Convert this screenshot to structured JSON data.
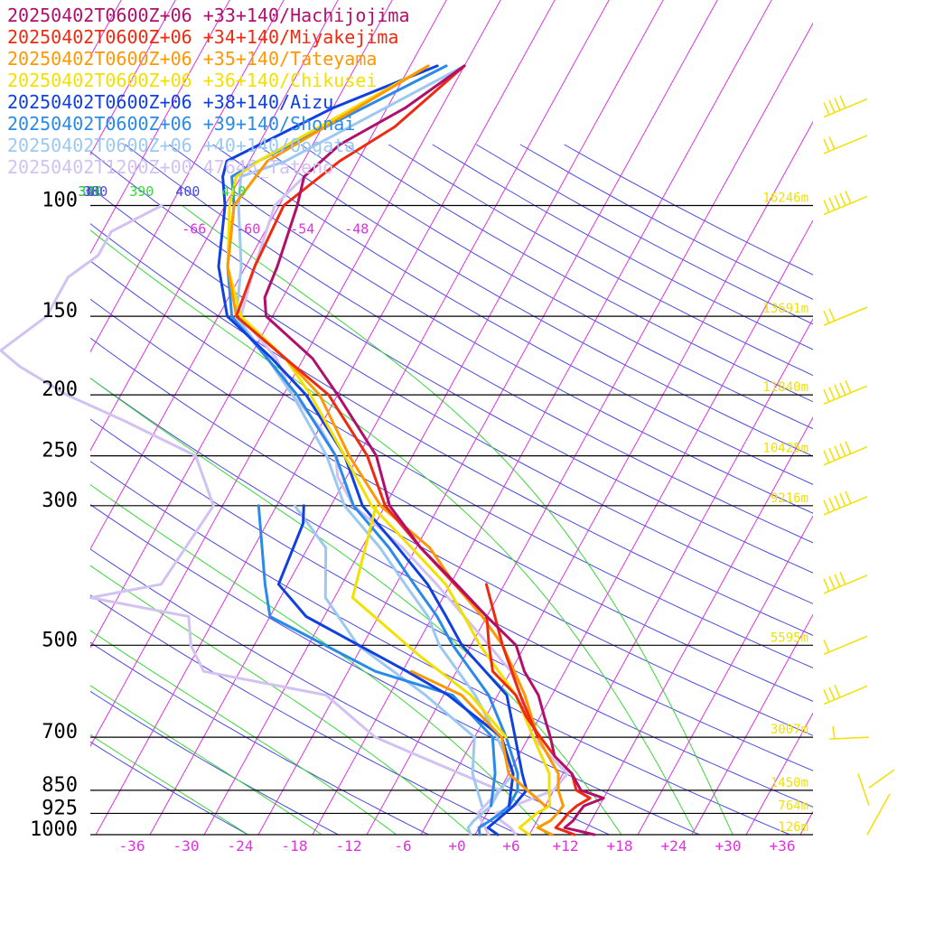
{
  "chart_data": {
    "type": "line",
    "legend": [
      {
        "text": "20250402T0600Z+06 +33+140/Hachijojima",
        "color": "#b0106a"
      },
      {
        "text": "20250402T0600Z+06 +34+140/Miyakejima",
        "color": "#ee2a10"
      },
      {
        "text": "20250402T0600Z+06 +35+140/Tateyama",
        "color": "#ff9800"
      },
      {
        "text": "20250402T0600Z+06 +36+140/Chikusei",
        "color": "#f2e100"
      },
      {
        "text": "20250402T0600Z+06 +38+140/Aizu",
        "color": "#1040e0"
      },
      {
        "text": "20250402T0600Z+06 +39+140/Shonai",
        "color": "#2a8ae8"
      },
      {
        "text": "20250402T0600Z+06 +40+140/Oogata",
        "color": "#9cc8f2"
      },
      {
        "text": "20250402T1200Z+00 47646_Tateno",
        "color": "#d2c2f2"
      }
    ],
    "pressure_levels": [
      {
        "label": "100",
        "p": 100,
        "height": "16246m"
      },
      {
        "label": "150",
        "p": 150,
        "height": "13691m"
      },
      {
        "label": "200",
        "p": 200,
        "height": "11840m"
      },
      {
        "label": "250",
        "p": 250,
        "height": "10425m"
      },
      {
        "label": "300",
        "p": 300,
        "height": "9216m"
      },
      {
        "label": "500",
        "p": 500,
        "height": "5595m"
      },
      {
        "label": "700",
        "p": 700,
        "height": "3007m"
      },
      {
        "label": "850",
        "p": 850,
        "height": "1450m"
      },
      {
        "label": "925",
        "p": 925,
        "height": "764m"
      },
      {
        "label": "1000",
        "p": 1000,
        "height": "126m"
      }
    ],
    "temperature_ticks": [
      "-36",
      "-30",
      "-24",
      "-18",
      "-12",
      "-6",
      "+0",
      "+6",
      "+12",
      "+18",
      "+24",
      "+30",
      "+36"
    ],
    "upper_temperature_labels": [
      "-66",
      "-60",
      "-54",
      "-48"
    ],
    "theta_labels": [
      "0",
      "320",
      "330",
      "340",
      "350",
      "360",
      "370",
      "380",
      "390",
      "400",
      "410"
    ],
    "xlim": [
      -40,
      40
    ],
    "ylim": [
      1000,
      100
    ],
    "y_scale": "log",
    "series": [
      {
        "name": "Hachijojima",
        "color": "#b0106a",
        "temp": [
          [
            1000,
            15.2
          ],
          [
            975,
            11.5
          ],
          [
            950,
            12.0
          ],
          [
            925,
            12.1
          ],
          [
            900,
            12.3
          ],
          [
            875,
            14.0
          ],
          [
            850,
            11.0
          ],
          [
            800,
            9.0
          ],
          [
            750,
            6.0
          ],
          [
            700,
            4.4
          ],
          [
            650,
            2.5
          ],
          [
            600,
            0.5
          ],
          [
            550,
            -2.5
          ],
          [
            500,
            -5.0
          ],
          [
            450,
            -10.0
          ],
          [
            400,
            -15.3
          ],
          [
            350,
            -21.5
          ],
          [
            300,
            -27.5
          ],
          [
            250,
            -32.0
          ],
          [
            200,
            -40.0
          ],
          [
            175,
            -45.0
          ],
          [
            150,
            -52.7
          ],
          [
            140,
            -54.0
          ],
          [
            125,
            -54.5
          ],
          [
            100,
            -56.0
          ],
          [
            90,
            -57.0
          ],
          [
            80,
            -55.0
          ],
          [
            70,
            -50.0
          ],
          [
            60,
            -46.0
          ]
        ],
        "dew": null
      },
      {
        "name": "Miyakejima",
        "color": "#ee2a10",
        "temp": [
          [
            1000,
            13.0
          ],
          [
            975,
            10.5
          ],
          [
            950,
            10.8
          ],
          [
            925,
            11.0
          ],
          [
            900,
            11.5
          ],
          [
            875,
            12.5
          ],
          [
            850,
            10.5
          ],
          [
            800,
            9.0
          ],
          [
            750,
            6.0
          ],
          [
            700,
            3.3
          ],
          [
            650,
            0.5
          ],
          [
            600,
            -2.0
          ],
          [
            550,
            -6.0
          ],
          [
            500,
            -8.0
          ],
          [
            450,
            -10.0
          ],
          [
            400,
            -15.5
          ],
          [
            350,
            -21.5
          ],
          [
            300,
            -28.0
          ],
          [
            250,
            -33.0
          ],
          [
            200,
            -41.0
          ],
          [
            175,
            -48.0
          ],
          [
            150,
            -56.0
          ],
          [
            125,
            -57.0
          ],
          [
            100,
            -57.5
          ],
          [
            85,
            -54.0
          ],
          [
            75,
            -50.0
          ],
          [
            60,
            -46.0
          ]
        ],
        "dew": [
          [
            700,
            3.0
          ],
          [
            600,
            -1.5
          ],
          [
            500,
            -6.5
          ],
          [
            400,
            -12.0
          ]
        ]
      },
      {
        "name": "Tateyama",
        "color": "#ff9800",
        "temp": [
          [
            1000,
            10.5
          ],
          [
            975,
            8.5
          ],
          [
            950,
            9.5
          ],
          [
            925,
            9.8
          ],
          [
            900,
            10.0
          ],
          [
            850,
            8.5
          ],
          [
            800,
            7.5
          ],
          [
            700,
            3.0
          ],
          [
            600,
            -1.0
          ],
          [
            500,
            -6.5
          ],
          [
            450,
            -10.5
          ],
          [
            400,
            -15.5
          ],
          [
            350,
            -20.5
          ],
          [
            300,
            -28.5
          ],
          [
            250,
            -35.0
          ],
          [
            200,
            -42.0
          ],
          [
            175,
            -48.0
          ],
          [
            150,
            -56.0
          ],
          [
            125,
            -60.0
          ],
          [
            100,
            -63.0
          ],
          [
            85,
            -62.0
          ],
          [
            60,
            -50.0
          ]
        ],
        "dew": [
          [
            900,
            8.0
          ],
          [
            800,
            2.0
          ],
          [
            700,
            -1.0
          ],
          [
            600,
            -8.0
          ],
          [
            550,
            -15.0
          ]
        ]
      },
      {
        "name": "Chikusei",
        "color": "#f2e100",
        "temp": [
          [
            1000,
            8.0
          ],
          [
            975,
            6.5
          ],
          [
            950,
            7.0
          ],
          [
            925,
            7.5
          ],
          [
            900,
            8.5
          ],
          [
            850,
            7.5
          ],
          [
            800,
            6.5
          ],
          [
            700,
            2.5
          ],
          [
            600,
            -2.0
          ],
          [
            500,
            -9.0
          ],
          [
            450,
            -12.5
          ],
          [
            400,
            -16.5
          ],
          [
            350,
            -22.5
          ],
          [
            300,
            -29.5
          ],
          [
            250,
            -35.5
          ],
          [
            200,
            -43.0
          ],
          [
            175,
            -48.0
          ],
          [
            150,
            -55.5
          ],
          [
            125,
            -60.0
          ],
          [
            100,
            -63.5
          ],
          [
            90,
            -64.5
          ],
          [
            85,
            -63.0
          ],
          [
            60,
            -50.0
          ]
        ],
        "dew": [
          [
            700,
            -0.5
          ],
          [
            600,
            -7.0
          ],
          [
            520,
            -15.0
          ],
          [
            420,
            -26.0
          ],
          [
            300,
            -29.0
          ]
        ]
      },
      {
        "name": "Aizu",
        "color": "#1040e0",
        "temp": [
          [
            1000,
            4.5
          ],
          [
            975,
            3.0
          ],
          [
            950,
            3.5
          ],
          [
            925,
            4.0
          ],
          [
            900,
            4.5
          ],
          [
            850,
            5.0
          ],
          [
            800,
            3.5
          ],
          [
            700,
            0.5
          ],
          [
            600,
            -3.0
          ],
          [
            500,
            -11.0
          ],
          [
            450,
            -14.5
          ],
          [
            400,
            -18.5
          ],
          [
            350,
            -24.0
          ],
          [
            300,
            -30.5
          ],
          [
            250,
            -35.5
          ],
          [
            200,
            -43.5
          ],
          [
            175,
            -49.5
          ],
          [
            150,
            -57.0
          ],
          [
            125,
            -61.0
          ],
          [
            100,
            -64.0
          ],
          [
            90,
            -66.0
          ],
          [
            85,
            -66.5
          ],
          [
            70,
            -58.0
          ],
          [
            60,
            -49.0
          ]
        ],
        "dew": [
          [
            900,
            4.0
          ],
          [
            800,
            2.5
          ],
          [
            700,
            -1.0
          ],
          [
            600,
            -9.5
          ],
          [
            550,
            -15.5
          ],
          [
            450,
            -30.0
          ],
          [
            400,
            -35.0
          ],
          [
            320,
            -36.0
          ],
          [
            300,
            -37.0
          ]
        ]
      },
      {
        "name": "Shonai",
        "color": "#2a8ae8",
        "temp": [
          [
            1000,
            2.5
          ],
          [
            975,
            2.0
          ],
          [
            950,
            2.8
          ],
          [
            925,
            3.5
          ],
          [
            900,
            4.0
          ],
          [
            850,
            4.0
          ],
          [
            800,
            3.0
          ],
          [
            700,
            -0.5
          ],
          [
            600,
            -5.0
          ],
          [
            500,
            -12.0
          ],
          [
            450,
            -15.5
          ],
          [
            400,
            -20.0
          ],
          [
            350,
            -25.0
          ],
          [
            300,
            -31.5
          ],
          [
            250,
            -36.5
          ],
          [
            200,
            -44.5
          ],
          [
            175,
            -50.0
          ],
          [
            150,
            -56.5
          ],
          [
            125,
            -60.0
          ],
          [
            100,
            -63.0
          ],
          [
            90,
            -65.0
          ],
          [
            85,
            -63.0
          ],
          [
            60,
            -48.0
          ]
        ],
        "dew": [
          [
            900,
            2.0
          ],
          [
            800,
            0.5
          ],
          [
            700,
            -2.0
          ],
          [
            600,
            -9.0
          ],
          [
            550,
            -19.0
          ],
          [
            450,
            -34.0
          ],
          [
            400,
            -36.5
          ],
          [
            300,
            -42.0
          ]
        ]
      },
      {
        "name": "Oogata",
        "color": "#9cc8f2",
        "temp": [
          [
            1000,
            1.5
          ],
          [
            975,
            0.8
          ],
          [
            950,
            1.0
          ],
          [
            925,
            1.5
          ],
          [
            900,
            2.0
          ],
          [
            850,
            2.0
          ],
          [
            800,
            2.5
          ],
          [
            700,
            -1.5
          ],
          [
            600,
            -6.5
          ],
          [
            500,
            -13.5
          ],
          [
            450,
            -16.5
          ],
          [
            400,
            -21.0
          ],
          [
            350,
            -26.0
          ],
          [
            300,
            -32.5
          ],
          [
            250,
            -37.5
          ],
          [
            200,
            -45.0
          ],
          [
            175,
            -50.0
          ],
          [
            150,
            -56.0
          ],
          [
            125,
            -58.5
          ],
          [
            100,
            -62.5
          ],
          [
            90,
            -64.0
          ],
          [
            85,
            -60.0
          ],
          [
            60,
            -46.0
          ]
        ],
        "dew": [
          [
            900,
            1.0
          ],
          [
            800,
            -2.0
          ],
          [
            700,
            -4.0
          ],
          [
            600,
            -12.0
          ],
          [
            500,
            -22.5
          ],
          [
            420,
            -29.0
          ],
          [
            350,
            -32.0
          ],
          [
            300,
            -38.0
          ]
        ]
      },
      {
        "name": "Tateno",
        "color": "#d2c2f2",
        "temp": [
          [
            1000,
            6.5
          ],
          [
            975,
            5.5
          ],
          [
            950,
            4.0
          ],
          [
            925,
            3.0
          ],
          [
            900,
            4.5
          ],
          [
            850,
            8.0
          ],
          [
            800,
            8.5
          ],
          [
            750,
            5.5
          ],
          [
            700,
            2.5
          ],
          [
            650,
            0.5
          ],
          [
            600,
            -1.5
          ],
          [
            550,
            -4.0
          ],
          [
            500,
            -8.0
          ],
          [
            400,
            -17.5
          ],
          [
            350,
            -23.5
          ],
          [
            300,
            -31.5
          ],
          [
            270,
            -35.0
          ],
          [
            250,
            -36.5
          ],
          [
            225,
            -40.0
          ],
          [
            200,
            -45.0
          ],
          [
            175,
            -49.0
          ],
          [
            150,
            -55.5
          ],
          [
            125,
            -57.0
          ],
          [
            100,
            -58.5
          ],
          [
            90,
            -57.0
          ]
        ],
        "dew": [
          [
            1000,
            3.5
          ],
          [
            925,
            1.0
          ],
          [
            850,
            2.0
          ],
          [
            750,
            -9.0
          ],
          [
            700,
            -15.0
          ],
          [
            600,
            -23.0
          ],
          [
            550,
            -38.0
          ],
          [
            500,
            -41.0
          ],
          [
            450,
            -43.0
          ],
          [
            420,
            -55.0
          ],
          [
            400,
            -48.0
          ],
          [
            300,
            -47.0
          ],
          [
            250,
            -52.0
          ],
          [
            220,
            -62.0
          ],
          [
            200,
            -70.0
          ],
          [
            180,
            -77.0
          ],
          [
            170,
            -80.0
          ],
          [
            150,
            -77.0
          ],
          [
            130,
            -77.0
          ],
          [
            120,
            -75.0
          ],
          [
            110,
            -75.0
          ],
          [
            100,
            -71.0
          ]
        ]
      }
    ],
    "wind_barbs_color": "#f2e100",
    "grid": true
  }
}
